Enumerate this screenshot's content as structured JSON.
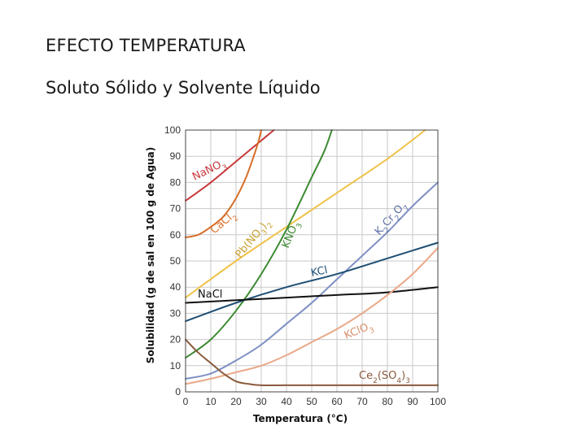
{
  "slide": {
    "title": "EFECTO TEMPERATURA",
    "subtitle": "Soluto Sólido y Solvente Líquido"
  },
  "chart_data": {
    "type": "line",
    "xlabel": "Temperatura (°C)",
    "ylabel": "Solubilidad (g de sal en 100 g de Agua)",
    "xlim": [
      0,
      100
    ],
    "ylim": [
      0,
      100
    ],
    "x_ticks": [
      "0",
      "10",
      "20",
      "30",
      "40",
      "50",
      "60",
      "70",
      "80",
      "90",
      "100"
    ],
    "y_ticks": [
      "0",
      "10",
      "20",
      "30",
      "40",
      "50",
      "60",
      "70",
      "80",
      "90",
      "100"
    ],
    "grid": true,
    "series": [
      {
        "name": "NaNO3",
        "color": "#c8383c",
        "points": [
          [
            0,
            73
          ],
          [
            10,
            80
          ],
          [
            20,
            88
          ],
          [
            30,
            96
          ],
          [
            35,
            100
          ]
        ]
      },
      {
        "name": "CaCl2",
        "color": "#d86e28",
        "points": [
          [
            0,
            59
          ],
          [
            5,
            60
          ],
          [
            10,
            63
          ],
          [
            15,
            67
          ],
          [
            20,
            74
          ],
          [
            24,
            82
          ],
          [
            27,
            90
          ],
          [
            29,
            96
          ],
          [
            30,
            100
          ]
        ]
      },
      {
        "name": "Pb(NO3)2",
        "color": "#f0c24a",
        "points": [
          [
            0,
            36
          ],
          [
            20,
            50
          ],
          [
            40,
            63
          ],
          [
            60,
            76
          ],
          [
            80,
            89
          ],
          [
            95,
            100
          ]
        ]
      },
      {
        "name": "KNO3",
        "color": "#3c8a32",
        "points": [
          [
            0,
            13
          ],
          [
            10,
            20
          ],
          [
            20,
            31
          ],
          [
            30,
            45
          ],
          [
            40,
            62
          ],
          [
            50,
            82
          ],
          [
            55,
            92
          ],
          [
            58,
            100
          ]
        ]
      },
      {
        "name": "K2Cr2O7",
        "color": "#7d8fc4",
        "points": [
          [
            0,
            5
          ],
          [
            10,
            7
          ],
          [
            20,
            12
          ],
          [
            30,
            18
          ],
          [
            40,
            26
          ],
          [
            50,
            34
          ],
          [
            60,
            43
          ],
          [
            70,
            52
          ],
          [
            80,
            61
          ],
          [
            90,
            71
          ],
          [
            100,
            80
          ]
        ]
      },
      {
        "name": "KCl",
        "color": "#1d4e74",
        "points": [
          [
            0,
            27
          ],
          [
            20,
            34
          ],
          [
            40,
            40
          ],
          [
            60,
            45
          ],
          [
            80,
            51
          ],
          [
            100,
            57
          ]
        ]
      },
      {
        "name": "NaCl",
        "color": "#111111",
        "points": [
          [
            0,
            34
          ],
          [
            20,
            35
          ],
          [
            40,
            36
          ],
          [
            60,
            37
          ],
          [
            80,
            38
          ],
          [
            100,
            40
          ]
        ]
      },
      {
        "name": "KClO3",
        "color": "#eaa888",
        "points": [
          [
            0,
            3
          ],
          [
            10,
            5
          ],
          [
            20,
            7.5
          ],
          [
            30,
            10
          ],
          [
            40,
            14
          ],
          [
            50,
            19
          ],
          [
            60,
            24
          ],
          [
            70,
            30
          ],
          [
            80,
            37
          ],
          [
            90,
            45
          ],
          [
            100,
            55
          ]
        ]
      },
      {
        "name": "Ce2(SO4)3",
        "color": "#8a5a3c",
        "points": [
          [
            0,
            20
          ],
          [
            5,
            15
          ],
          [
            10,
            11
          ],
          [
            15,
            7
          ],
          [
            20,
            4
          ],
          [
            25,
            3
          ],
          [
            30,
            2.5
          ],
          [
            40,
            2.5
          ],
          [
            60,
            2.5
          ],
          [
            80,
            2.5
          ],
          [
            100,
            2.5
          ]
        ]
      }
    ]
  }
}
